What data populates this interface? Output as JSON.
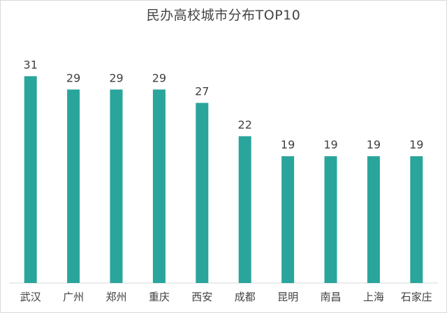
{
  "chart_data": {
    "type": "bar",
    "title": "民办高校城市分布TOP10",
    "xlabel": "",
    "ylabel": "",
    "categories": [
      "武汉",
      "广州",
      "郑州",
      "重庆",
      "西安",
      "成都",
      "昆明",
      "南昌",
      "上海",
      "石家庄"
    ],
    "values": [
      31,
      29,
      29,
      29,
      27,
      22,
      19,
      19,
      19,
      19
    ],
    "ylim": [
      0,
      35
    ],
    "grid": false,
    "legend": "none",
    "show_data_labels": true,
    "colors": {
      "bar": "#2aa59b",
      "axis": "#d9d9d9",
      "text": "#404040"
    }
  }
}
